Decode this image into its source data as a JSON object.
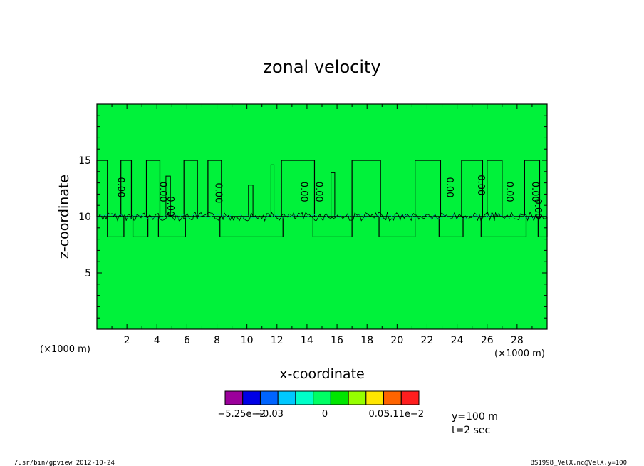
{
  "chart_data": {
    "type": "heatmap",
    "title": "zonal velocity",
    "xlabel": "x-coordinate",
    "ylabel": "z-coordinate",
    "x_unit": "(×1000 m)",
    "y_unit": "(×1000 m)",
    "xlim": [
      0,
      30
    ],
    "ylim": [
      0,
      20
    ],
    "x_ticks": [
      "2",
      "4",
      "6",
      "8",
      "10",
      "12",
      "14",
      "16",
      "18",
      "20",
      "22",
      "24",
      "26",
      "28"
    ],
    "y_ticks": [
      "5",
      "10",
      "15"
    ],
    "contour_labels": [
      "0.00",
      "0.00",
      "0.00",
      "0.00",
      "0.00",
      "0.00",
      "0.00",
      "0.00",
      "0.00",
      "0.00",
      "0.00"
    ],
    "field_value": 0,
    "colorbar": {
      "labels": [
        "−5.25e−2",
        "−0.03",
        "0",
        "0.03",
        "5.11e−2"
      ],
      "colors": [
        "#9b009b",
        "#0000e6",
        "#0064ff",
        "#00c8ff",
        "#00ffc8",
        "#00ff64",
        "#00e600",
        "#96ff00",
        "#ffe600",
        "#ff6400",
        "#ff1e1e"
      ]
    },
    "info": [
      "y=100 m",
      "t=2 sec"
    ],
    "colors": {
      "field": "#00f23a",
      "contour": "#000000",
      "dash": "#00b4b4"
    }
  },
  "footer": {
    "left": "/usr/bin/gpview 2012-10-24",
    "right": "BS1998_VelX.nc@VelX,y=100"
  }
}
